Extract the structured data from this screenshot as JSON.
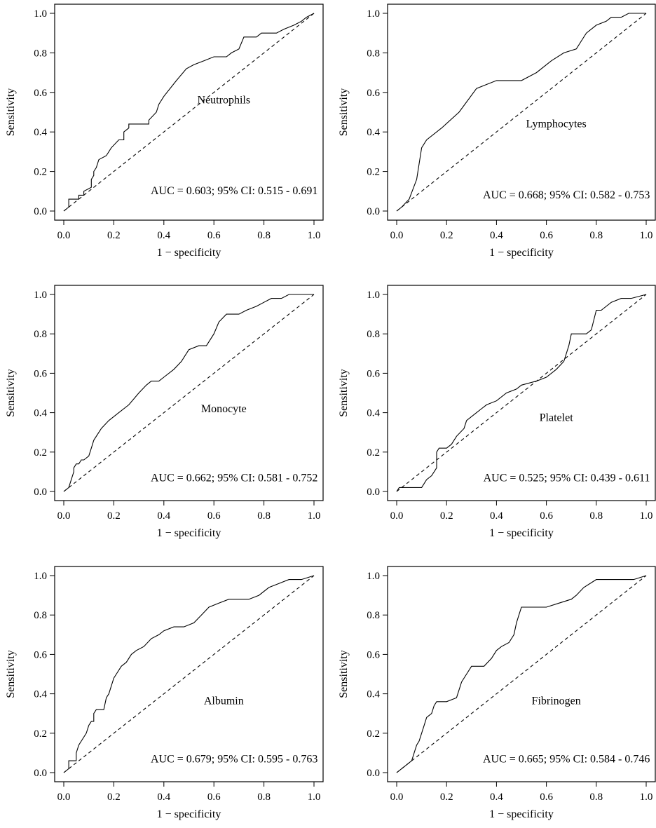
{
  "figure": {
    "axis_labels": {
      "x": "1 − specificity",
      "y": "Sensitivity"
    }
  },
  "chart_data": [
    {
      "type": "line",
      "title": "",
      "xlabel": "1 − specificity",
      "ylabel": "Sensitivity",
      "xlim": [
        0,
        1
      ],
      "ylim": [
        0,
        1
      ],
      "xticks": [
        "0.0",
        "0.2",
        "0.4",
        "0.6",
        "0.8",
        "1.0"
      ],
      "yticks": [
        "0.0",
        "0.2",
        "0.4",
        "0.6",
        "0.8",
        "1.0"
      ],
      "label": "Neutrophils",
      "annotation": "AUC = 0.603; 95% CI: 0.515 - 0.691",
      "series": [
        {
          "x": [
            0,
            0.02,
            0.02,
            0.06,
            0.06,
            0.08,
            0.08,
            0.11,
            0.11,
            0.12,
            0.12,
            0.13,
            0.14,
            0.14,
            0.17,
            0.19,
            0.22,
            0.24,
            0.24,
            0.26,
            0.26,
            0.28,
            0.31,
            0.34,
            0.34,
            0.37,
            0.38,
            0.4,
            0.45,
            0.49,
            0.52,
            0.56,
            0.6,
            0.65,
            0.67,
            0.7,
            0.72,
            0.77,
            0.79,
            0.85,
            0.88,
            0.92,
            0.95,
            0.97,
            1.0
          ],
          "y": [
            0,
            0.02,
            0.06,
            0.06,
            0.08,
            0.08,
            0.1,
            0.12,
            0.16,
            0.18,
            0.2,
            0.22,
            0.26,
            0.26,
            0.28,
            0.32,
            0.36,
            0.36,
            0.4,
            0.42,
            0.44,
            0.44,
            0.44,
            0.44,
            0.46,
            0.5,
            0.54,
            0.58,
            0.66,
            0.72,
            0.74,
            0.76,
            0.78,
            0.78,
            0.8,
            0.82,
            0.88,
            0.88,
            0.9,
            0.9,
            0.92,
            0.94,
            0.96,
            0.98,
            1.0
          ]
        },
        {
          "x": [
            0,
            1
          ],
          "y": [
            0,
            1
          ],
          "style": "dashed"
        }
      ]
    },
    {
      "type": "line",
      "title": "",
      "xlabel": "1 − specificity",
      "ylabel": "Sensitivity",
      "xlim": [
        0,
        1
      ],
      "ylim": [
        0,
        1
      ],
      "xticks": [
        "0.0",
        "0.2",
        "0.4",
        "0.6",
        "0.8",
        "1.0"
      ],
      "yticks": [
        "0.0",
        "0.2",
        "0.4",
        "0.6",
        "0.8",
        "1.0"
      ],
      "label": "Lymphocytes",
      "annotation": "AUC = 0.668; 95% CI: 0.582 - 0.753",
      "series": [
        {
          "x": [
            0,
            0.02,
            0.05,
            0.08,
            0.1,
            0.12,
            0.18,
            0.25,
            0.32,
            0.36,
            0.4,
            0.45,
            0.5,
            0.56,
            0.62,
            0.67,
            0.72,
            0.74,
            0.76,
            0.8,
            0.84,
            0.86,
            0.88,
            0.9,
            0.93,
            1.0
          ],
          "y": [
            0,
            0.02,
            0.06,
            0.16,
            0.32,
            0.36,
            0.42,
            0.5,
            0.62,
            0.64,
            0.66,
            0.66,
            0.66,
            0.7,
            0.76,
            0.8,
            0.82,
            0.86,
            0.9,
            0.94,
            0.96,
            0.98,
            0.98,
            0.98,
            1.0,
            1.0
          ]
        },
        {
          "x": [
            0,
            1
          ],
          "y": [
            0,
            1
          ],
          "style": "dashed"
        }
      ]
    },
    {
      "type": "line",
      "title": "",
      "xlabel": "1 − specificity",
      "ylabel": "Sensitivity",
      "xlim": [
        0,
        1
      ],
      "ylim": [
        0,
        1
      ],
      "xticks": [
        "0.0",
        "0.2",
        "0.4",
        "0.6",
        "0.8",
        "1.0"
      ],
      "yticks": [
        "0.0",
        "0.2",
        "0.4",
        "0.6",
        "0.8",
        "1.0"
      ],
      "label": "Monocyte",
      "annotation": "AUC = 0.662; 95% CI: 0.581 - 0.752",
      "series": [
        {
          "x": [
            0,
            0.02,
            0.03,
            0.04,
            0.04,
            0.05,
            0.06,
            0.07,
            0.08,
            0.1,
            0.11,
            0.12,
            0.15,
            0.18,
            0.22,
            0.26,
            0.3,
            0.33,
            0.35,
            0.38,
            0.4,
            0.44,
            0.47,
            0.5,
            0.54,
            0.57,
            0.58,
            0.6,
            0.62,
            0.65,
            0.68,
            0.7,
            0.73,
            0.77,
            0.8,
            0.83,
            0.87,
            0.9,
            0.92,
            1.0
          ],
          "y": [
            0,
            0.02,
            0.06,
            0.1,
            0.12,
            0.14,
            0.14,
            0.16,
            0.16,
            0.18,
            0.22,
            0.26,
            0.32,
            0.36,
            0.4,
            0.44,
            0.5,
            0.54,
            0.56,
            0.56,
            0.58,
            0.62,
            0.66,
            0.72,
            0.74,
            0.74,
            0.76,
            0.8,
            0.86,
            0.9,
            0.9,
            0.9,
            0.92,
            0.94,
            0.96,
            0.98,
            0.98,
            1.0,
            1.0,
            1.0
          ]
        },
        {
          "x": [
            0,
            1
          ],
          "y": [
            0,
            1
          ],
          "style": "dashed"
        }
      ]
    },
    {
      "type": "line",
      "title": "",
      "xlabel": "1 − specificity",
      "ylabel": "Sensitivity",
      "xlim": [
        0,
        1
      ],
      "ylim": [
        0,
        1
      ],
      "xticks": [
        "0.0",
        "0.2",
        "0.4",
        "0.6",
        "0.8",
        "1.0"
      ],
      "yticks": [
        "0.0",
        "0.2",
        "0.4",
        "0.6",
        "0.8",
        "1.0"
      ],
      "label": "Platelet",
      "annotation": "AUC = 0.525; 95% CI: 0.439 - 0.611",
      "series": [
        {
          "x": [
            0,
            0.01,
            0.1,
            0.12,
            0.14,
            0.16,
            0.16,
            0.17,
            0.2,
            0.22,
            0.24,
            0.27,
            0.28,
            0.3,
            0.32,
            0.34,
            0.36,
            0.4,
            0.44,
            0.48,
            0.5,
            0.56,
            0.6,
            0.64,
            0.67,
            0.69,
            0.7,
            0.72,
            0.76,
            0.78,
            0.8,
            0.82,
            0.86,
            0.9,
            0.94,
            1.0
          ],
          "y": [
            0,
            0.02,
            0.02,
            0.06,
            0.08,
            0.12,
            0.2,
            0.22,
            0.22,
            0.24,
            0.28,
            0.32,
            0.36,
            0.38,
            0.4,
            0.42,
            0.44,
            0.46,
            0.5,
            0.52,
            0.54,
            0.56,
            0.58,
            0.62,
            0.66,
            0.74,
            0.8,
            0.8,
            0.8,
            0.82,
            0.92,
            0.92,
            0.96,
            0.98,
            0.98,
            1.0
          ]
        },
        {
          "x": [
            0,
            1
          ],
          "y": [
            0,
            1
          ],
          "style": "dashed"
        }
      ]
    },
    {
      "type": "line",
      "title": "",
      "xlabel": "1 − specificity",
      "ylabel": "Sensitivity",
      "xlim": [
        0,
        1
      ],
      "ylim": [
        0,
        1
      ],
      "xticks": [
        "0.0",
        "0.2",
        "0.4",
        "0.6",
        "0.8",
        "1.0"
      ],
      "yticks": [
        "0.0",
        "0.2",
        "0.4",
        "0.6",
        "0.8",
        "1.0"
      ],
      "label": "Albumin",
      "annotation": "AUC = 0.679; 95% CI: 0.595 - 0.763",
      "series": [
        {
          "x": [
            0,
            0.02,
            0.02,
            0.05,
            0.05,
            0.06,
            0.07,
            0.09,
            0.1,
            0.11,
            0.12,
            0.12,
            0.13,
            0.14,
            0.16,
            0.17,
            0.18,
            0.19,
            0.2,
            0.21,
            0.23,
            0.25,
            0.27,
            0.29,
            0.32,
            0.35,
            0.38,
            0.4,
            0.44,
            0.48,
            0.52,
            0.55,
            0.58,
            0.62,
            0.66,
            0.7,
            0.74,
            0.78,
            0.82,
            0.86,
            0.9,
            0.95,
            1.0
          ],
          "y": [
            0,
            0.02,
            0.06,
            0.06,
            0.1,
            0.14,
            0.16,
            0.2,
            0.24,
            0.26,
            0.26,
            0.3,
            0.32,
            0.32,
            0.32,
            0.38,
            0.4,
            0.44,
            0.48,
            0.5,
            0.54,
            0.56,
            0.6,
            0.62,
            0.64,
            0.68,
            0.7,
            0.72,
            0.74,
            0.74,
            0.76,
            0.8,
            0.84,
            0.86,
            0.88,
            0.88,
            0.88,
            0.9,
            0.94,
            0.96,
            0.98,
            0.98,
            1.0
          ]
        },
        {
          "x": [
            0,
            1
          ],
          "y": [
            0,
            1
          ],
          "style": "dashed"
        }
      ]
    },
    {
      "type": "line",
      "title": "",
      "xlabel": "1 − specificity",
      "ylabel": "Sensitivity",
      "xlim": [
        0,
        1
      ],
      "ylim": [
        0,
        1
      ],
      "xticks": [
        "0.0",
        "0.2",
        "0.4",
        "0.6",
        "0.8",
        "1.0"
      ],
      "yticks": [
        "0.0",
        "0.2",
        "0.4",
        "0.6",
        "0.8",
        "1.0"
      ],
      "label": "Fibrinogen",
      "annotation": "AUC = 0.665; 95% CI: 0.584 - 0.746",
      "series": [
        {
          "x": [
            0,
            0.02,
            0.04,
            0.06,
            0.07,
            0.08,
            0.09,
            0.1,
            0.11,
            0.12,
            0.14,
            0.15,
            0.16,
            0.18,
            0.2,
            0.24,
            0.26,
            0.28,
            0.3,
            0.35,
            0.38,
            0.4,
            0.42,
            0.45,
            0.47,
            0.48,
            0.49,
            0.5,
            0.52,
            0.55,
            0.6,
            0.65,
            0.7,
            0.72,
            0.75,
            0.8,
            0.85,
            0.9,
            0.95,
            1.0
          ],
          "y": [
            0,
            0.02,
            0.04,
            0.06,
            0.1,
            0.14,
            0.16,
            0.2,
            0.24,
            0.28,
            0.3,
            0.34,
            0.36,
            0.36,
            0.36,
            0.38,
            0.46,
            0.5,
            0.54,
            0.54,
            0.58,
            0.62,
            0.64,
            0.66,
            0.7,
            0.76,
            0.8,
            0.84,
            0.84,
            0.84,
            0.84,
            0.86,
            0.88,
            0.9,
            0.94,
            0.98,
            0.98,
            0.98,
            0.98,
            1.0
          ]
        },
        {
          "x": [
            0,
            1
          ],
          "y": [
            0,
            1
          ],
          "style": "dashed"
        }
      ]
    }
  ]
}
